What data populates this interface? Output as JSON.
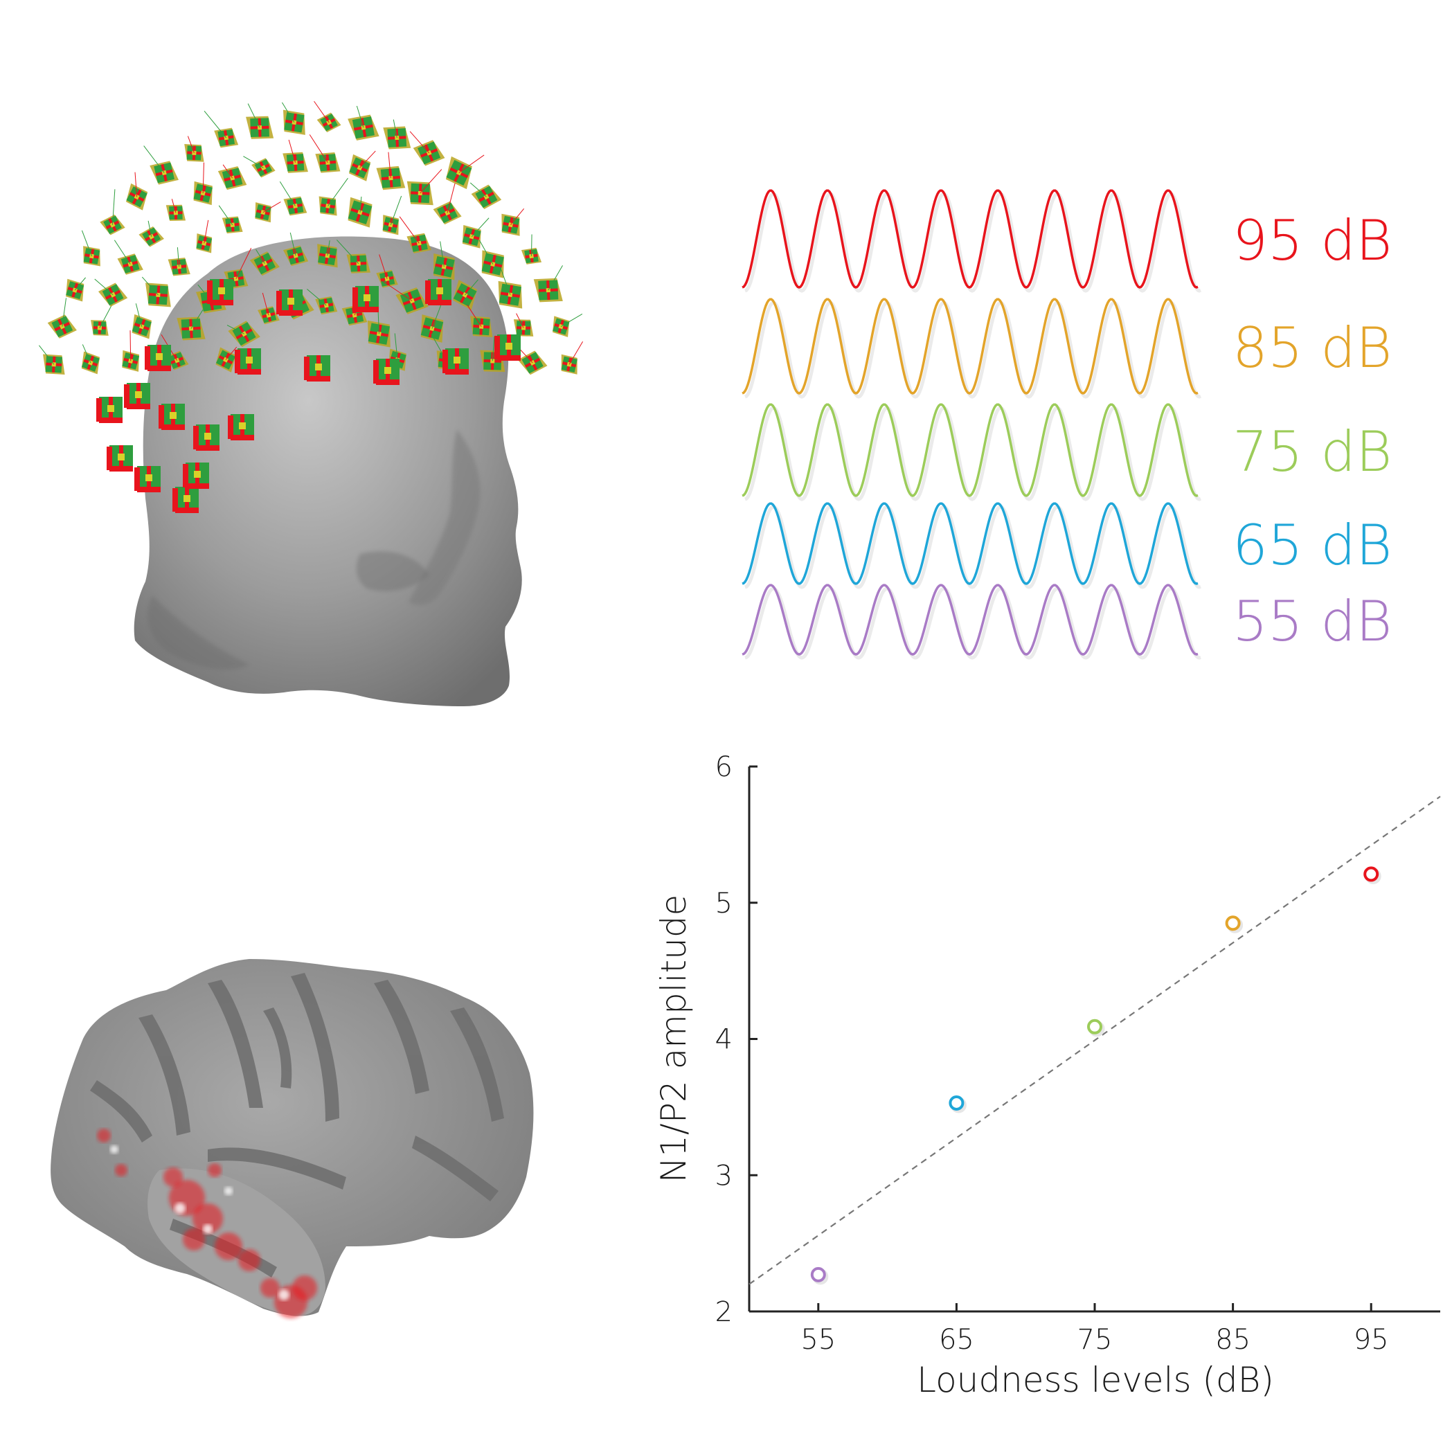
{
  "colors": {
    "red": "#e8141c",
    "orange": "#e3a42a",
    "green": "#9ccc5a",
    "blue": "#1fa6d8",
    "purple": "#a97bc6",
    "sensor_green": "#2e9e3e",
    "sensor_red": "#e8141c",
    "sensor_yellow": "#d8d22a",
    "head_gray": "#9a9a9a",
    "brain_gray": "#8f8f8f"
  },
  "sound_levels": [
    {
      "label": "95 dB",
      "color": "#e8141c"
    },
    {
      "label": "85 dB",
      "color": "#e3a42a"
    },
    {
      "label": "75 dB",
      "color": "#9ccc5a"
    },
    {
      "label": "65 dB",
      "color": "#1fa6d8"
    },
    {
      "label": "55 dB",
      "color": "#a97bc6"
    }
  ],
  "illustrations": {
    "head": "meg-sensor-helmet-on-head",
    "brain": "inflated-cortex-with-red-activation"
  },
  "chart_data": {
    "type": "scatter",
    "title": "",
    "xlabel": "Loudness levels (dB)",
    "ylabel": "N1/P2 amplitude",
    "xlim": [
      50,
      100
    ],
    "ylim": [
      2,
      6
    ],
    "xticks": [
      "55",
      "65",
      "75",
      "85",
      "95"
    ],
    "yticks": [
      "2",
      "3",
      "4",
      "5",
      "6"
    ],
    "grid": false,
    "points": [
      {
        "x": 55,
        "y": 2.27,
        "color": "#a97bc6"
      },
      {
        "x": 65,
        "y": 3.53,
        "color": "#1fa6d8"
      },
      {
        "x": 75,
        "y": 4.09,
        "color": "#9ccc5a"
      },
      {
        "x": 85,
        "y": 4.85,
        "color": "#e3a42a"
      },
      {
        "x": 95,
        "y": 5.21,
        "color": "#e8141c"
      }
    ],
    "fit_line": {
      "x": [
        50,
        100
      ],
      "y": [
        2.2,
        5.78
      ],
      "style": "dashed",
      "color": "#777777"
    }
  }
}
